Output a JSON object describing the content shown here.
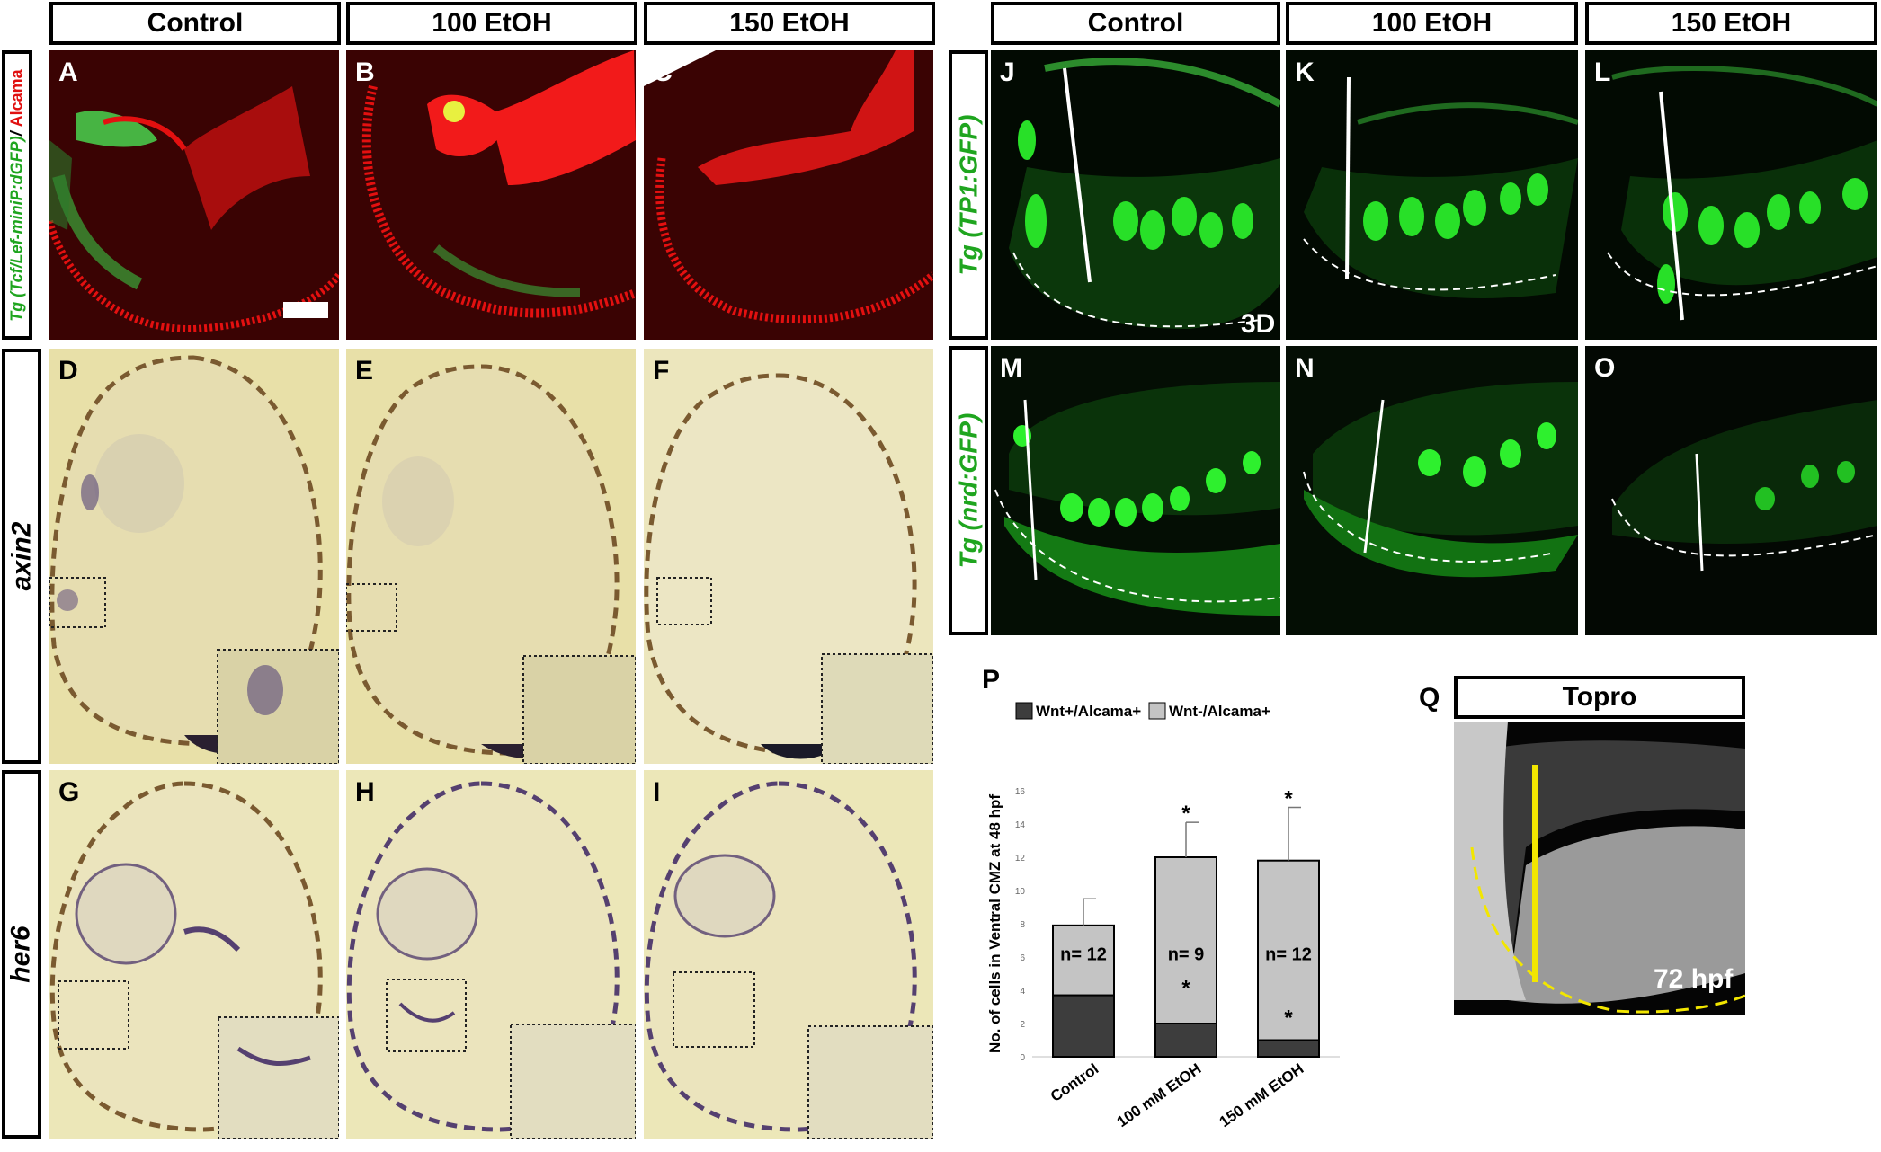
{
  "left_headers": [
    "Control",
    "100 EtOH",
    "150 EtOH"
  ],
  "right_headers": [
    "Control",
    "100 EtOH",
    "150 EtOH"
  ],
  "row_labels": {
    "tcf_green": "Tg (Tcf/Lef-miniP:dGFP)",
    "tcf_sep": "/ ",
    "tcf_red": "Alcama",
    "axin2": "axin2",
    "her6": "her6",
    "tp1": "Tg (TP1:GFP)",
    "nrd": "Tg (nrd:GFP)"
  },
  "panel_letters": {
    "A": "A",
    "B": "B",
    "C": "C",
    "D": "D",
    "E": "E",
    "F": "F",
    "G": "G",
    "H": "H",
    "I": "I",
    "J": "J",
    "K": "K",
    "L": "L",
    "M": "M",
    "N": "N",
    "O": "O",
    "P": "P",
    "Q": "Q"
  },
  "annotations": {
    "three_d": "3D",
    "topro_header": "Topro",
    "topro_stage": "72 hpf"
  },
  "colors": {
    "green_label": "#1fa51f",
    "red_label": "#e01010",
    "bar_dark": "#3d3d3d",
    "bar_light": "#c4c4c4",
    "yellow_line": "#f2e600"
  },
  "chart_data": {
    "type": "bar",
    "stacked": true,
    "categories": [
      "Control",
      "100 mM EtOH",
      "150 mM EtOH"
    ],
    "ylabel": "No. of cells in Ventral CMZ at 48 hpf",
    "ylim": [
      0,
      16
    ],
    "yticks": [
      0,
      2,
      4,
      6,
      8,
      10,
      12,
      14,
      16
    ],
    "series": [
      {
        "name": "Wnt+/Alcama+",
        "values": [
          3.7,
          2.0,
          1.0
        ],
        "errors": [
          1.1,
          1.6,
          0.8
        ],
        "stars": [
          "",
          "*",
          "*"
        ]
      },
      {
        "name": "Wnt-/Alcama+",
        "values": [
          4.2,
          10.0,
          10.8
        ],
        "errors": [
          1.6,
          2.1,
          3.2
        ],
        "stars": [
          "",
          "*",
          "*"
        ]
      }
    ],
    "annotations": [
      "n= 12",
      "n= 9",
      "n= 12"
    ],
    "legend_position": "top"
  }
}
